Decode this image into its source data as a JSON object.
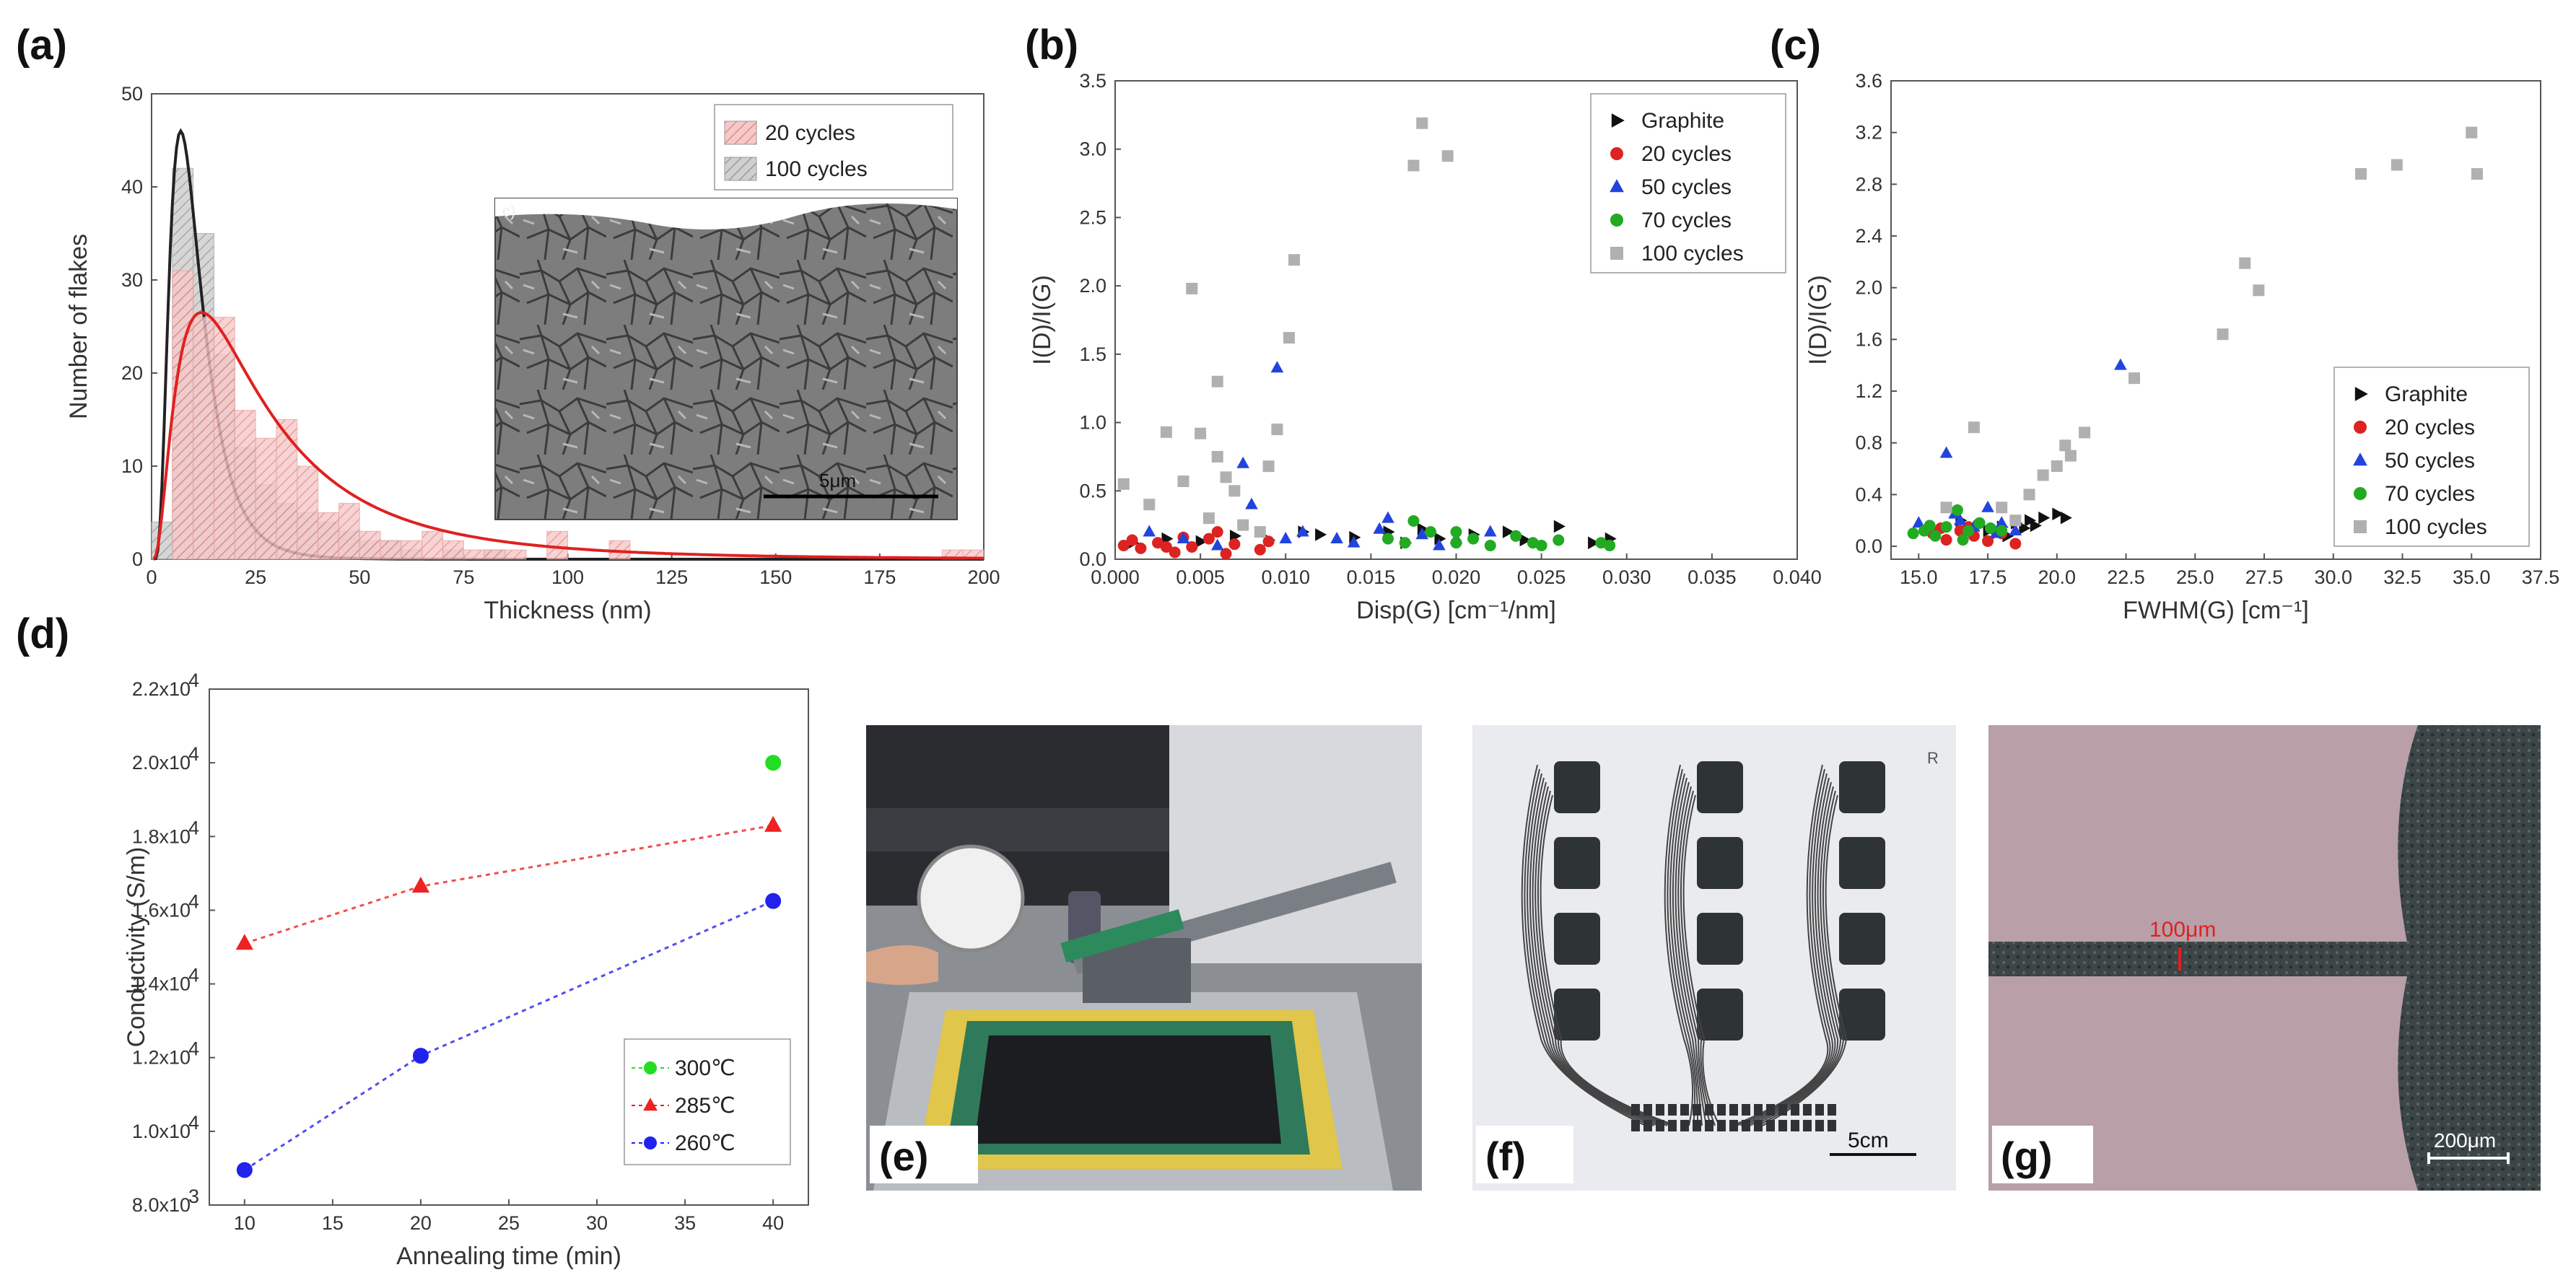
{
  "panels": {
    "a": "(a)",
    "b": "(b)",
    "c": "(c)",
    "d": "(d)",
    "e": "(e)",
    "f": "(f)",
    "g": "(g)"
  },
  "photos": {
    "inset_scalebar": "5μm",
    "inset_corner": "c)",
    "f_scalebar": "5cm",
    "f_corner": "R",
    "g_width": "100μm",
    "g_scalebar": "200μm"
  },
  "chart_data": [
    {
      "id": "a",
      "type": "bar",
      "xlabel": "Thickness (nm)",
      "ylabel": "Number of flakes",
      "xlim": [
        0,
        200
      ],
      "ylim": [
        0,
        50
      ],
      "xticks": [
        0,
        25,
        50,
        75,
        100,
        125,
        150,
        175,
        200
      ],
      "yticks": [
        0,
        10,
        20,
        30,
        40,
        50
      ],
      "bin_width": 5,
      "series": [
        {
          "name": "20 cycles",
          "color": "#e87a7a",
          "bins": [
            [
              5,
              31
            ],
            [
              10,
              26
            ],
            [
              15,
              26
            ],
            [
              20,
              16
            ],
            [
              25,
              13
            ],
            [
              30,
              15
            ],
            [
              35,
              10
            ],
            [
              40,
              5
            ],
            [
              45,
              6
            ],
            [
              50,
              3
            ],
            [
              55,
              2
            ],
            [
              60,
              2
            ],
            [
              65,
              3
            ],
            [
              70,
              2
            ],
            [
              75,
              1
            ],
            [
              80,
              1
            ],
            [
              85,
              1
            ],
            [
              95,
              3
            ],
            [
              110,
              2
            ],
            [
              190,
              1
            ],
            [
              195,
              1
            ]
          ],
          "fit_peak_x": 12,
          "fit_peak_y": 26.5
        },
        {
          "name": "100 cycles",
          "color": "#888888",
          "bins": [
            [
              0,
              4
            ],
            [
              5,
              42
            ],
            [
              10,
              35
            ],
            [
              15,
              22
            ],
            [
              20,
              12
            ],
            [
              25,
              8
            ],
            [
              30,
              6
            ],
            [
              35,
              5
            ],
            [
              40,
              4
            ],
            [
              45,
              3
            ],
            [
              50,
              2
            ],
            [
              55,
              2
            ],
            [
              60,
              1
            ],
            [
              70,
              1
            ],
            [
              80,
              1
            ]
          ],
          "fit_peak_x": 7,
          "fit_peak_y": 46
        }
      ]
    },
    {
      "id": "b",
      "type": "scatter",
      "xlabel": "Disp(G) [cm⁻¹/nm]",
      "ylabel": "I(D)/I(G)",
      "xlim": [
        0,
        0.04
      ],
      "ylim": [
        0,
        3.5
      ],
      "xticks": [
        0.0,
        0.005,
        0.01,
        0.015,
        0.02,
        0.025,
        0.03,
        0.035,
        0.04
      ],
      "xtick_labels": [
        "0.000",
        "0.005",
        "0.010",
        "0.015",
        "0.020",
        "0.025",
        "0.030",
        "0.035",
        "0.040"
      ],
      "yticks": [
        0,
        0.5,
        1.0,
        1.5,
        2.0,
        2.5,
        3.0,
        3.5
      ],
      "ytick_labels": [
        "0.0",
        "0.5",
        "1.0",
        "1.5",
        "2.0",
        "2.5",
        "3.0",
        "3.5"
      ],
      "legend_position": "top-right",
      "series": [
        {
          "name": "Graphite",
          "color": "#111111",
          "marker": "triangle-right",
          "points": [
            [
              0.001,
              0.12
            ],
            [
              0.003,
              0.15
            ],
            [
              0.005,
              0.13
            ],
            [
              0.007,
              0.17
            ],
            [
              0.009,
              0.14
            ],
            [
              0.012,
              0.18
            ],
            [
              0.014,
              0.16
            ],
            [
              0.016,
              0.2
            ],
            [
              0.018,
              0.22
            ],
            [
              0.019,
              0.15
            ],
            [
              0.021,
              0.18
            ],
            [
              0.023,
              0.2
            ],
            [
              0.024,
              0.14
            ],
            [
              0.026,
              0.24
            ],
            [
              0.028,
              0.12
            ],
            [
              0.029,
              0.15
            ],
            [
              0.011,
              0.2
            ],
            [
              0.017,
              0.12
            ]
          ]
        },
        {
          "name": "20 cycles",
          "color": "#dd2222",
          "marker": "circle",
          "points": [
            [
              0.0005,
              0.1
            ],
            [
              0.0015,
              0.08
            ],
            [
              0.0025,
              0.12
            ],
            [
              0.0035,
              0.05
            ],
            [
              0.0045,
              0.09
            ],
            [
              0.0055,
              0.15
            ],
            [
              0.0065,
              0.04
            ],
            [
              0.007,
              0.11
            ],
            [
              0.0085,
              0.07
            ],
            [
              0.009,
              0.13
            ],
            [
              0.001,
              0.14
            ],
            [
              0.003,
              0.09
            ],
            [
              0.006,
              0.2
            ],
            [
              0.004,
              0.16
            ]
          ]
        },
        {
          "name": "50 cycles",
          "color": "#2244dd",
          "marker": "triangle-up",
          "points": [
            [
              0.002,
              0.2
            ],
            [
              0.004,
              0.15
            ],
            [
              0.0075,
              0.7
            ],
            [
              0.008,
              0.4
            ],
            [
              0.0095,
              1.4
            ],
            [
              0.011,
              0.2
            ],
            [
              0.013,
              0.15
            ],
            [
              0.014,
              0.12
            ],
            [
              0.016,
              0.3
            ],
            [
              0.018,
              0.18
            ],
            [
              0.02,
              0.15
            ],
            [
              0.022,
              0.2
            ],
            [
              0.01,
              0.15
            ],
            [
              0.006,
              0.1
            ],
            [
              0.0155,
              0.22
            ],
            [
              0.019,
              0.1
            ]
          ]
        },
        {
          "name": "70 cycles",
          "color": "#22aa22",
          "marker": "circle",
          "points": [
            [
              0.016,
              0.15
            ],
            [
              0.0175,
              0.28
            ],
            [
              0.0185,
              0.2
            ],
            [
              0.02,
              0.12
            ],
            [
              0.021,
              0.15
            ],
            [
              0.022,
              0.1
            ],
            [
              0.0235,
              0.17
            ],
            [
              0.0245,
              0.12
            ],
            [
              0.025,
              0.1
            ],
            [
              0.026,
              0.14
            ],
            [
              0.0285,
              0.12
            ],
            [
              0.029,
              0.1
            ],
            [
              0.02,
              0.2
            ],
            [
              0.017,
              0.12
            ]
          ]
        },
        {
          "name": "100 cycles",
          "color": "#b0b0b0",
          "marker": "square",
          "points": [
            [
              0.003,
              0.93
            ],
            [
              0.004,
              0.57
            ],
            [
              0.0045,
              1.98
            ],
            [
              0.005,
              0.92
            ],
            [
              0.0055,
              0.3
            ],
            [
              0.006,
              0.75
            ],
            [
              0.006,
              1.3
            ],
            [
              0.0065,
              0.6
            ],
            [
              0.007,
              0.5
            ],
            [
              0.0075,
              0.25
            ],
            [
              0.0085,
              0.2
            ],
            [
              0.009,
              0.68
            ],
            [
              0.0095,
              0.95
            ],
            [
              0.0102,
              1.62
            ],
            [
              0.0105,
              2.19
            ],
            [
              0.0175,
              2.88
            ],
            [
              0.018,
              3.19
            ],
            [
              0.0195,
              2.95
            ],
            [
              0.0005,
              0.55
            ],
            [
              0.002,
              0.4
            ]
          ]
        }
      ]
    },
    {
      "id": "c",
      "type": "scatter",
      "xlabel": "FWHM(G) [cm⁻¹]",
      "ylabel": "I(D)/I(G)",
      "xlim": [
        14,
        37.5
      ],
      "ylim": [
        -0.1,
        3.6
      ],
      "xticks": [
        15,
        17.5,
        20,
        22.5,
        25,
        27.5,
        30,
        32.5,
        35,
        37.5
      ],
      "xtick_labels": [
        "15.0",
        "17.5",
        "20.0",
        "22.5",
        "25.0",
        "27.5",
        "30.0",
        "32.5",
        "35.0",
        "37.5"
      ],
      "yticks": [
        0,
        0.4,
        0.8,
        1.2,
        1.6,
        2.0,
        2.4,
        2.8,
        3.2,
        3.6
      ],
      "ytick_labels": [
        "0.0",
        "0.4",
        "0.8",
        "1.2",
        "1.6",
        "2.0",
        "2.4",
        "2.8",
        "3.2",
        "3.6"
      ],
      "legend_position": "bottom-right",
      "series": [
        {
          "name": "Graphite",
          "color": "#111111",
          "marker": "triangle-right",
          "points": [
            [
              17.5,
              0.12
            ],
            [
              18,
              0.15
            ],
            [
              18.5,
              0.18
            ],
            [
              19,
              0.2
            ],
            [
              19.5,
              0.22
            ],
            [
              20,
              0.25
            ],
            [
              18.8,
              0.14
            ],
            [
              17.8,
              0.1
            ],
            [
              19.2,
              0.16
            ],
            [
              20.3,
              0.22
            ],
            [
              18.2,
              0.08
            ],
            [
              16.5,
              0.2
            ]
          ]
        },
        {
          "name": "20 cycles",
          "color": "#dd2222",
          "marker": "circle",
          "points": [
            [
              15.5,
              0.1
            ],
            [
              16,
              0.05
            ],
            [
              16.5,
              0.12
            ],
            [
              17,
              0.08
            ],
            [
              17.5,
              0.04
            ],
            [
              18,
              0.1
            ],
            [
              18.5,
              0.02
            ],
            [
              16.8,
              0.15
            ],
            [
              17.2,
              0.18
            ],
            [
              15.8,
              0.14
            ]
          ]
        },
        {
          "name": "50 cycles",
          "color": "#2244dd",
          "marker": "triangle-up",
          "points": [
            [
              15,
              0.18
            ],
            [
              16,
              0.72
            ],
            [
              16.5,
              0.2
            ],
            [
              17,
              0.15
            ],
            [
              17.5,
              0.3
            ],
            [
              18,
              0.18
            ],
            [
              18.5,
              0.12
            ],
            [
              22.3,
              1.4
            ],
            [
              16.3,
              0.25
            ],
            [
              17.8,
              0.1
            ]
          ]
        },
        {
          "name": "70 cycles",
          "color": "#22aa22",
          "marker": "circle",
          "points": [
            [
              14.8,
              0.1
            ],
            [
              15.2,
              0.12
            ],
            [
              15.6,
              0.08
            ],
            [
              16,
              0.15
            ],
            [
              16.4,
              0.28
            ],
            [
              16.8,
              0.12
            ],
            [
              17.2,
              0.18
            ],
            [
              17.6,
              0.14
            ],
            [
              18,
              0.12
            ],
            [
              15.4,
              0.16
            ],
            [
              16.6,
              0.05
            ]
          ]
        },
        {
          "name": "100 cycles",
          "color": "#b0b0b0",
          "marker": "square",
          "points": [
            [
              16,
              0.3
            ],
            [
              17,
              0.92
            ],
            [
              18,
              0.3
            ],
            [
              19,
              0.4
            ],
            [
              19.5,
              0.55
            ],
            [
              20,
              0.62
            ],
            [
              20.5,
              0.7
            ],
            [
              21,
              0.88
            ],
            [
              22.8,
              1.3
            ],
            [
              26,
              1.64
            ],
            [
              26.8,
              2.19
            ],
            [
              27.3,
              1.98
            ],
            [
              31,
              2.88
            ],
            [
              32.3,
              2.95
            ],
            [
              35,
              3.2
            ],
            [
              35.2,
              2.88
            ],
            [
              20.3,
              0.78
            ],
            [
              18.5,
              0.2
            ]
          ]
        }
      ]
    },
    {
      "id": "d",
      "type": "line",
      "xlabel": "Annealing time (min)",
      "ylabel": "Conductivity (S/m)",
      "xlim": [
        8,
        42
      ],
      "ylim": [
        8000,
        22000
      ],
      "xticks": [
        10,
        15,
        20,
        25,
        30,
        35,
        40
      ],
      "yticks": [
        8000,
        10000,
        12000,
        14000,
        16000,
        18000,
        20000,
        22000
      ],
      "ytick_mantissa": [
        "8.0",
        "1.0",
        "1.2",
        "1.4",
        "1.6",
        "1.8",
        "2.0",
        "2.2"
      ],
      "ytick_exponent": [
        "3",
        "4",
        "4",
        "4",
        "4",
        "4",
        "4",
        "4"
      ],
      "ytick_base": "x10",
      "legend_position": "bottom-right",
      "series": [
        {
          "name": "300℃",
          "color": "#22dd22",
          "marker": "circle",
          "x": [
            40
          ],
          "y": [
            20000
          ],
          "line": false
        },
        {
          "name": "285℃",
          "color": "#ee2222",
          "marker": "triangle-up",
          "x": [
            10,
            20,
            40
          ],
          "y": [
            15100,
            16650,
            18300
          ],
          "line": true
        },
        {
          "name": "260℃",
          "color": "#2222ee",
          "marker": "circle",
          "x": [
            10,
            20,
            40
          ],
          "y": [
            8950,
            12050,
            16250
          ],
          "line": true
        }
      ]
    }
  ]
}
